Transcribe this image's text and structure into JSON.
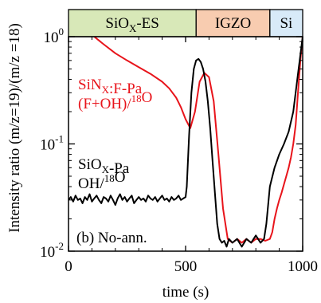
{
  "chart_data": {
    "type": "line",
    "xlabel": "time (s)",
    "ylabel": "Intensity ratio (m/z=19)/(m/z =18)",
    "xlim": [
      0,
      1000
    ],
    "ylim": [
      0.01,
      1
    ],
    "y_scale": "log",
    "grid": false,
    "x_ticks": [
      0,
      500,
      1000
    ],
    "y_ticks": [
      {
        "value": 0.01,
        "base": "10",
        "exp": "-2"
      },
      {
        "value": 0.1,
        "base": "10",
        "exp": "-1"
      },
      {
        "value": 1,
        "base": "10",
        "exp": "0"
      }
    ],
    "layers": [
      {
        "label": "SiO",
        "sub": "X",
        "rest": "-ES",
        "x_start": 0,
        "x_end": 545,
        "color": "#d8e8b8"
      },
      {
        "label": "IGZO",
        "sub": "",
        "rest": "",
        "x_start": 545,
        "x_end": 860,
        "color": "#f8ccb0"
      },
      {
        "label": "Si",
        "sub": "",
        "rest": "",
        "x_start": 860,
        "x_end": 1000,
        "color": "#d8eaf8"
      }
    ],
    "panel_label": "(b) No-ann.",
    "series": [
      {
        "name_lines": [
          {
            "parts": [
              {
                "t": "SiN"
              },
              {
                "t": "X",
                "sub": true
              },
              {
                "t": ":F-Pa"
              }
            ]
          },
          {
            "parts": [
              {
                "t": "(F+OH)/"
              },
              {
                "t": "18",
                "sup": true
              },
              {
                "t": "O"
              }
            ]
          }
        ],
        "color": "#e8141b",
        "x": [
          110,
          150,
          200,
          250,
          300,
          350,
          400,
          430,
          460,
          480,
          500,
          520,
          540,
          560,
          580,
          600,
          620,
          640,
          660,
          680,
          700,
          720,
          740,
          760,
          780,
          800,
          820,
          840,
          860,
          870,
          880,
          890,
          900,
          910,
          920,
          930,
          940,
          950,
          960,
          970,
          980,
          990,
          1000
        ],
        "y": [
          1.0,
          0.85,
          0.7,
          0.6,
          0.52,
          0.45,
          0.38,
          0.33,
          0.27,
          0.22,
          0.17,
          0.14,
          0.2,
          0.38,
          0.46,
          0.42,
          0.25,
          0.08,
          0.025,
          0.013,
          0.012,
          0.013,
          0.012,
          0.013,
          0.012,
          0.013,
          0.013,
          0.0125,
          0.013,
          0.015,
          0.02,
          0.025,
          0.03,
          0.035,
          0.042,
          0.05,
          0.06,
          0.075,
          0.1,
          0.15,
          0.3,
          0.6,
          1.0
        ]
      },
      {
        "name_lines": [
          {
            "parts": [
              {
                "t": "SiO"
              },
              {
                "t": "X",
                "sub": true
              },
              {
                "t": "-Pa"
              }
            ]
          },
          {
            "parts": [
              {
                "t": "OH/"
              },
              {
                "t": "18",
                "sup": true
              },
              {
                "t": "O"
              }
            ]
          }
        ],
        "color": "#000000",
        "x": [
          0,
          10,
          20,
          30,
          40,
          50,
          60,
          70,
          80,
          90,
          100,
          110,
          120,
          130,
          140,
          150,
          160,
          170,
          180,
          190,
          200,
          210,
          220,
          230,
          240,
          250,
          260,
          270,
          280,
          290,
          300,
          310,
          320,
          330,
          340,
          350,
          360,
          370,
          380,
          390,
          400,
          410,
          420,
          430,
          440,
          450,
          460,
          470,
          480,
          490,
          500,
          505,
          515,
          525,
          535,
          545,
          555,
          565,
          575,
          585,
          595,
          605,
          615,
          625,
          635,
          645,
          655,
          665,
          675,
          685,
          700,
          720,
          740,
          760,
          780,
          800,
          820,
          835,
          845,
          860,
          880,
          900,
          920,
          940,
          960,
          980,
          1000
        ],
        "y": [
          0.03,
          0.032,
          0.029,
          0.033,
          0.03,
          0.031,
          0.028,
          0.032,
          0.03,
          0.034,
          0.029,
          0.031,
          0.033,
          0.03,
          0.028,
          0.032,
          0.031,
          0.029,
          0.033,
          0.03,
          0.027,
          0.031,
          0.034,
          0.03,
          0.032,
          0.029,
          0.031,
          0.033,
          0.028,
          0.03,
          0.032,
          0.03,
          0.031,
          0.029,
          0.033,
          0.031,
          0.03,
          0.032,
          0.029,
          0.031,
          0.033,
          0.03,
          0.031,
          0.029,
          0.032,
          0.03,
          0.031,
          0.033,
          0.03,
          0.031,
          0.032,
          0.04,
          0.12,
          0.3,
          0.5,
          0.6,
          0.62,
          0.58,
          0.5,
          0.38,
          0.25,
          0.14,
          0.07,
          0.035,
          0.018,
          0.013,
          0.012,
          0.0125,
          0.011,
          0.013,
          0.012,
          0.013,
          0.011,
          0.013,
          0.012,
          0.014,
          0.012,
          0.013,
          0.018,
          0.04,
          0.06,
          0.08,
          0.1,
          0.13,
          0.2,
          0.45,
          1.0
        ]
      }
    ]
  }
}
